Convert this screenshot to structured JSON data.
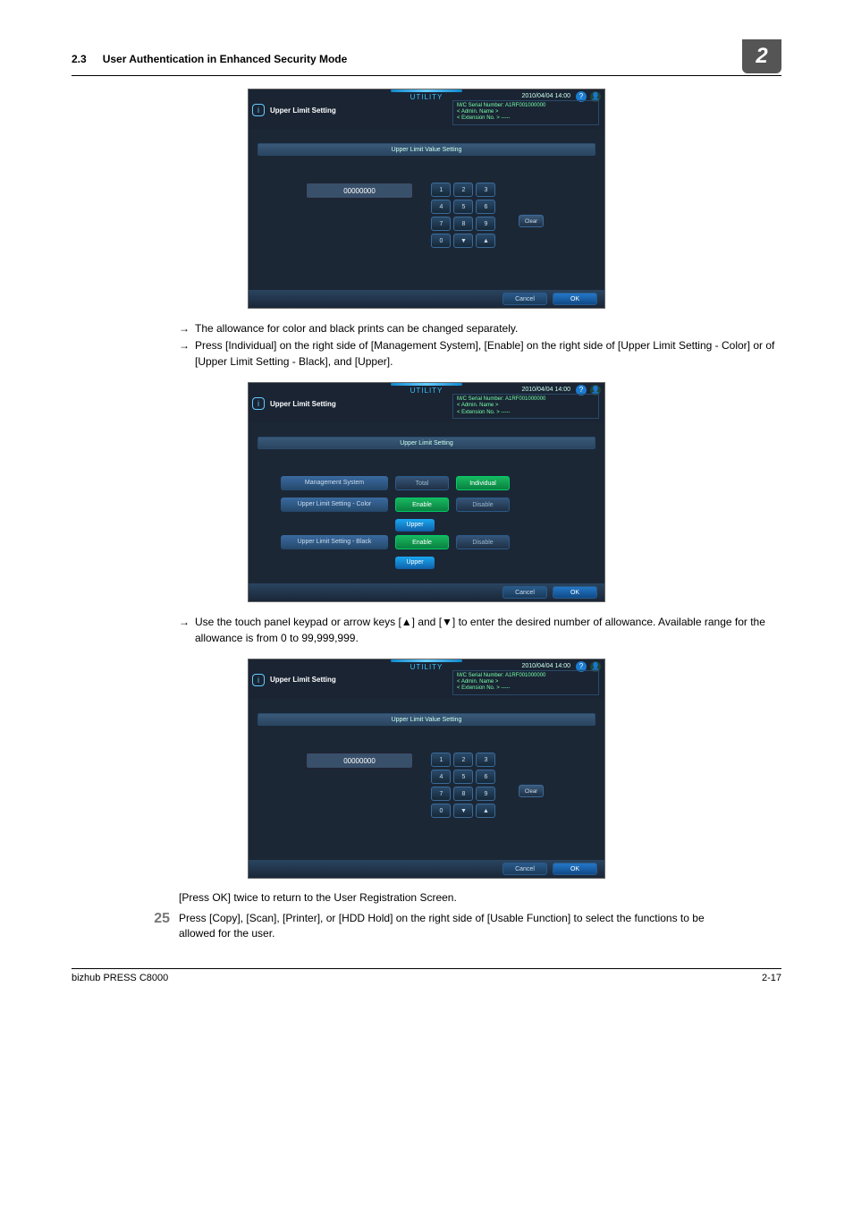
{
  "page": {
    "section_no": "2.3",
    "section_title": "User Authentication in Enhanced Security Mode",
    "chapter_badge": "2",
    "footer_left": "bizhub PRESS C8000",
    "footer_right": "2-17"
  },
  "bullets": {
    "b1": "The allowance for color and black prints can be changed separately.",
    "b2": "Press [Individual] on the right side of [Management System], [Enable] on the right side of [Upper Limit Setting - Color] or of [Upper Limit Setting - Black], and [Upper].",
    "b3": "Use the touch panel keypad or arrow keys [▲] and [▼] to enter the desired number of allowance. Available range for the allowance is from 0 to 99,999,999."
  },
  "post_text": "[Press OK] twice to return to the User Registration Screen.",
  "step25": {
    "num": "25",
    "text": "Press [Copy], [Scan], [Printer], or [HDD Hold] on the right side of [Usable Function] to select the functions to be allowed for the user."
  },
  "shot_common": {
    "utility": "UTILITY",
    "date": "2010/04/04 14:00",
    "meta1": "M/C Serial Number: A1RF001000000",
    "meta2": "< Admin. Name >",
    "meta3": "< Extension No. >  -----",
    "info_icon": "i",
    "value": "00000000",
    "cancel": "Cancel",
    "ok": "OK",
    "clear": "Clear"
  },
  "shot1": {
    "title": "Upper Limit Setting",
    "strip": "Upper Limit Value Setting"
  },
  "shot2": {
    "title": "Upper Limit Setting",
    "strip": "Upper Limit Setting",
    "rows": {
      "r1": {
        "label": "Management System",
        "btnA": "Total",
        "btnB": "Individual"
      },
      "r2": {
        "label": "Upper Limit Setting - Color",
        "btnA": "Enable",
        "btnB": "Disable",
        "upper": "Upper"
      },
      "r3": {
        "label": "Upper Limit Setting - Black",
        "btnA": "Enable",
        "btnB": "Disable",
        "upper": "Upper"
      }
    }
  },
  "shot3": {
    "title": "Upper Limit Setting",
    "strip": "Upper Limit Value Setting"
  },
  "keypad": [
    "1",
    "2",
    "3",
    "4",
    "5",
    "6",
    "7",
    "8",
    "9",
    "0",
    "▼",
    "▲"
  ]
}
